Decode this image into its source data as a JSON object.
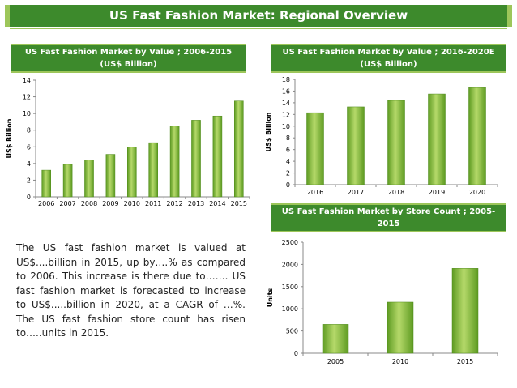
{
  "page": {
    "title": "US Fast Fashion Market: Regional Overview"
  },
  "description": "The US fast fashion market is valued at US$....billion in 2015, up by….% as compared to 2006. This increase is there due to……. US fast fashion market is forecasted to increase to US$.....billion in 2020, at a CAGR of …%. The US fast fashion store count has risen to…..units in 2015.",
  "colors": {
    "header": "#3d8a2c",
    "accent": "#9dc65a",
    "bar_light": "#b5d96a",
    "bar_dark": "#5e9b22"
  },
  "chart_data": [
    {
      "type": "bar",
      "title": "US Fast Fashion Market by Value ; 2006-2015 (US$ Billion)",
      "xlabel": "",
      "ylabel": "US$ Billion",
      "categories": [
        "2006",
        "2007",
        "2008",
        "2009",
        "2010",
        "2011",
        "2012",
        "2013",
        "2014",
        "2015"
      ],
      "values": [
        3.2,
        3.9,
        4.4,
        5.1,
        6.0,
        6.5,
        8.5,
        9.2,
        9.7,
        11.5
      ],
      "ylim": [
        0,
        14
      ],
      "yticks": [
        0,
        2,
        4,
        6,
        8,
        10,
        12,
        14
      ],
      "grid": false,
      "legend": "none"
    },
    {
      "type": "bar",
      "title": "US Fast Fashion Market by Value ; 2016-2020E (US$ Billion)",
      "xlabel": "",
      "ylabel": "US$ Billion",
      "categories": [
        "2016",
        "2017",
        "2018",
        "2019",
        "2020"
      ],
      "values": [
        12.3,
        13.3,
        14.4,
        15.5,
        16.6
      ],
      "ylim": [
        0,
        18
      ],
      "yticks": [
        0,
        2,
        4,
        6,
        8,
        10,
        12,
        14,
        16,
        18
      ],
      "grid": false,
      "legend": "none"
    },
    {
      "type": "bar",
      "title": "US Fast Fashion Market by Store Count ; 2005-2015",
      "xlabel": "",
      "ylabel": "Units",
      "categories": [
        "2005",
        "2010",
        "2015"
      ],
      "values": [
        650,
        1150,
        1910
      ],
      "ylim": [
        0,
        2500
      ],
      "yticks": [
        0,
        500,
        1000,
        1500,
        2000,
        2500
      ],
      "grid": false,
      "legend": "none"
    }
  ]
}
